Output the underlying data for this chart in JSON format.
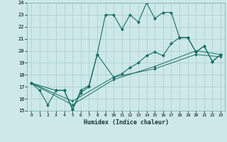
{
  "xlabel": "Humidex (Indice chaleur)",
  "bg_color": "#cce8e8",
  "grid_color": "#aacccc",
  "line_color": "#1a6e64",
  "xlim_min": -0.5,
  "xlim_max": 23.5,
  "ylim_min": 15,
  "ylim_max": 24,
  "xticks": [
    0,
    1,
    2,
    3,
    4,
    5,
    6,
    7,
    8,
    9,
    10,
    11,
    12,
    13,
    14,
    15,
    16,
    17,
    18,
    19,
    20,
    21,
    22,
    23
  ],
  "yticks": [
    15,
    16,
    17,
    18,
    19,
    20,
    21,
    22,
    23,
    24
  ],
  "series1_x": [
    0,
    1,
    2,
    3,
    4,
    5,
    6,
    7,
    8,
    9,
    10,
    11,
    12,
    13,
    14,
    15,
    16,
    17,
    18,
    19,
    20,
    21,
    22,
    23
  ],
  "series1_y": [
    17.3,
    16.7,
    15.5,
    16.7,
    16.7,
    15.1,
    16.7,
    17.1,
    19.7,
    23.0,
    23.0,
    21.8,
    23.0,
    22.4,
    24.0,
    22.7,
    23.2,
    23.2,
    21.1,
    21.1,
    19.9,
    20.4,
    19.1,
    19.7
  ],
  "series2_x": [
    0,
    3,
    4,
    5,
    6,
    7,
    8,
    10,
    11,
    12,
    13,
    14,
    15,
    16,
    17,
    18,
    19,
    20,
    21,
    22,
    23
  ],
  "series2_y": [
    17.3,
    16.7,
    16.7,
    15.1,
    16.5,
    17.0,
    19.7,
    17.8,
    18.1,
    18.6,
    19.0,
    19.6,
    19.9,
    19.6,
    20.6,
    21.1,
    21.1,
    19.9,
    20.4,
    19.1,
    19.7
  ],
  "series3_x": [
    0,
    5,
    10,
    15,
    20,
    23
  ],
  "series3_y": [
    17.3,
    15.5,
    17.6,
    18.7,
    20.0,
    19.7
  ],
  "series4_x": [
    0,
    5,
    10,
    15,
    20,
    23
  ],
  "series4_y": [
    17.3,
    15.8,
    17.8,
    18.5,
    19.7,
    19.5
  ]
}
